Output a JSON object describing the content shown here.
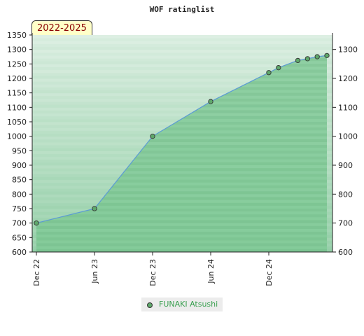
{
  "chart_data": {
    "type": "area",
    "title": "WOF ratinglist",
    "period_label": "2022-2025",
    "xlabel": "",
    "ylabel": "",
    "ylim": [
      600,
      1350
    ],
    "y_ticks_left": [
      600,
      650,
      700,
      750,
      800,
      850,
      900,
      950,
      1000,
      1050,
      1100,
      1150,
      1200,
      1250,
      1300,
      1350
    ],
    "y_ticks_right": [
      600,
      700,
      800,
      900,
      1000,
      1100,
      1200,
      1300
    ],
    "x_ticks": [
      "Dec 22",
      "Jun 23",
      "Dec 23",
      "Jun 24",
      "Dec 24"
    ],
    "series": [
      {
        "name": "FUNAKI Atsushi",
        "color": "#5fa86b",
        "line_color": "#5b9bd5",
        "x": [
          "2022-12",
          "2023-06",
          "2023-12",
          "2024-06",
          "2024-12",
          "2025-01",
          "2025-03",
          "2025-04",
          "2025-05",
          "2025-06"
        ],
        "values": [
          700,
          750,
          1000,
          1120,
          1220,
          1237,
          1262,
          1268,
          1275,
          1279
        ]
      }
    ],
    "grid": true,
    "legend_position": "bottom-center"
  }
}
